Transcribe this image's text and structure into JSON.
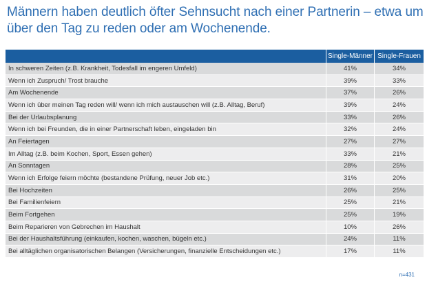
{
  "title": {
    "line1": "Männern haben deutlich öfter Sehnsucht nach einer Partnerin – etwa um",
    "line2": "über den Tag zu reden oder am Wochenende."
  },
  "table": {
    "headers": [
      "",
      "Single-Männer",
      "Single-Frauen"
    ],
    "rows": [
      {
        "label": "In schweren Zeiten (z.B. Krankheit, Todesfall im engeren Umfeld)",
        "maenner": "41%",
        "frauen": "34%"
      },
      {
        "label": "Wenn ich Zuspruch/ Trost brauche",
        "maenner": "39%",
        "frauen": "33%"
      },
      {
        "label": "Am Wochenende",
        "maenner": "37%",
        "frauen": "26%"
      },
      {
        "label": "Wenn ich über meinen Tag reden will/ wenn ich mich austauschen will (z.B. Alltag, Beruf)",
        "maenner": "39%",
        "frauen": "24%"
      },
      {
        "label": "Bei der Urlaubsplanung",
        "maenner": "33%",
        "frauen": "26%"
      },
      {
        "label": "Wenn ich bei Freunden, die in einer Partnerschaft leben, eingeladen bin",
        "maenner": "32%",
        "frauen": "24%"
      },
      {
        "label": "An Feiertagen",
        "maenner": "27%",
        "frauen": "27%"
      },
      {
        "label": "Im Alltag (z.B. beim Kochen, Sport, Essen gehen)",
        "maenner": "33%",
        "frauen": "21%"
      },
      {
        "label": "An Sonntagen",
        "maenner": "28%",
        "frauen": "25%"
      },
      {
        "label": "Wenn ich Erfolge feiern möchte (bestandene Prüfung, neuer Job etc.)",
        "maenner": "31%",
        "frauen": "20%"
      },
      {
        "label": "Bei Hochzeiten",
        "maenner": "26%",
        "frauen": "25%"
      },
      {
        "label": "Bei Familienfeiern",
        "maenner": "25%",
        "frauen": "21%"
      },
      {
        "label": "Beim Fortgehen",
        "maenner": "25%",
        "frauen": "19%"
      },
      {
        "label": "Beim Reparieren von Gebrechen im Haushalt",
        "maenner": "10%",
        "frauen": "26%"
      },
      {
        "label": "Bei der Haushaltsführung (einkaufen, kochen, waschen, bügeln etc.)",
        "maenner": "24%",
        "frauen": "11%"
      },
      {
        "label": "Bei alltäglichen organisatorischen Belangen (Versicherungen, finanzielle Entscheidungen etc.)",
        "maenner": "17%",
        "frauen": "11%"
      }
    ]
  },
  "footnote": "n=431",
  "colors": {
    "title": "#2f6fb3",
    "header_bg": "#1b5ea0",
    "row_dark": "#d9dadb",
    "row_light": "#ededee"
  }
}
